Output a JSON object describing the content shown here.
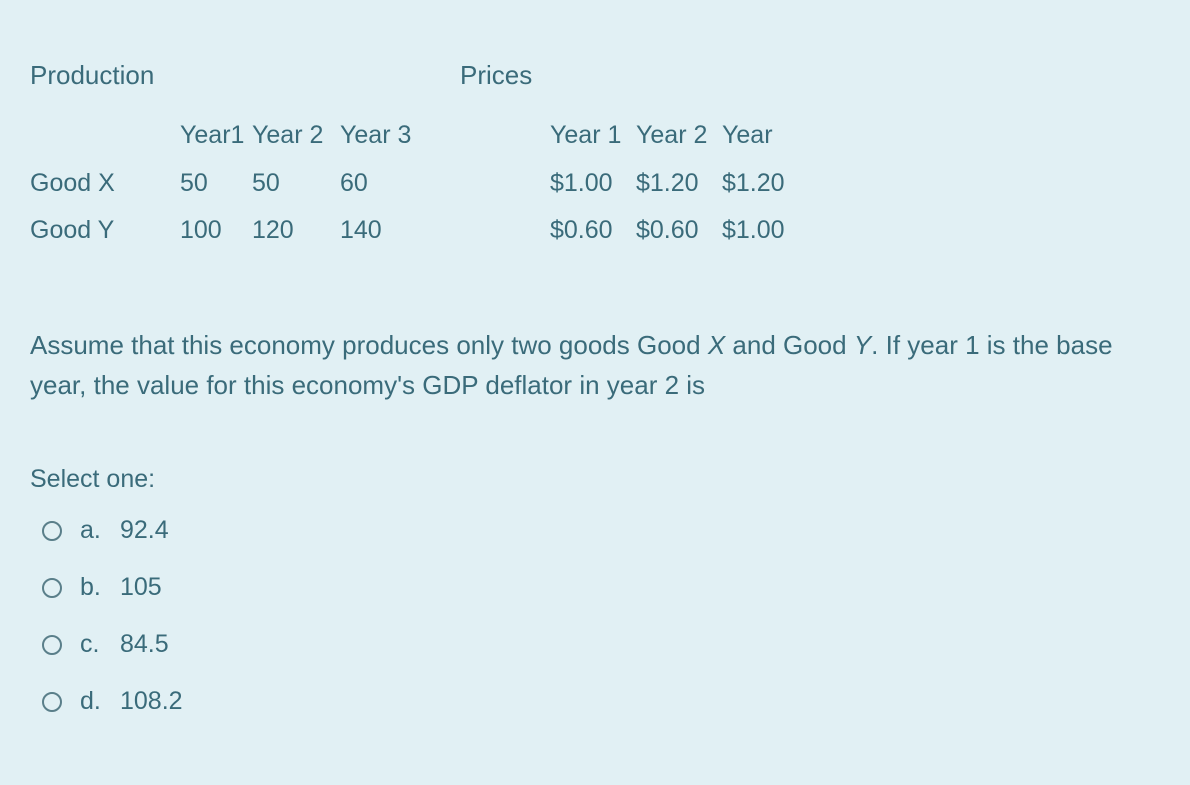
{
  "colors": {
    "background": "#e1f0f4",
    "text": "#3a6b7a",
    "radio_border": "#5a7f8a"
  },
  "typography": {
    "family": "Arial",
    "body_size_pt": 19,
    "line_height": 1.55
  },
  "production": {
    "heading": "Production",
    "col_headers": [
      "Year1",
      "Year 2",
      "Year 3"
    ],
    "rows": [
      {
        "label": "Good X",
        "values": [
          "50",
          "50",
          "60"
        ]
      },
      {
        "label": "Good Y",
        "values": [
          "100",
          "120",
          "140"
        ]
      }
    ]
  },
  "prices": {
    "heading": "Prices",
    "col_headers": [
      "Year 1",
      "Year 2",
      "Year"
    ],
    "rows": [
      {
        "values": [
          "$1.00",
          "$1.20",
          "$1.20"
        ]
      },
      {
        "values": [
          "$0.60",
          "$0.60",
          "$1.00"
        ]
      }
    ]
  },
  "question": {
    "pre": "Assume that this economy produces only two goods Good ",
    "ital1": "X",
    "mid1": " and Good ",
    "ital2": "Y",
    "mid2": ". If year 1 is the base year, the value for this economy's GDP deflator in year 2 is"
  },
  "select_label": "Select one:",
  "options": [
    {
      "letter": "a.",
      "text": "92.4"
    },
    {
      "letter": "b.",
      "text": "105"
    },
    {
      "letter": "c.",
      "text": "84.5"
    },
    {
      "letter": "d.",
      "text": "108.2"
    }
  ]
}
